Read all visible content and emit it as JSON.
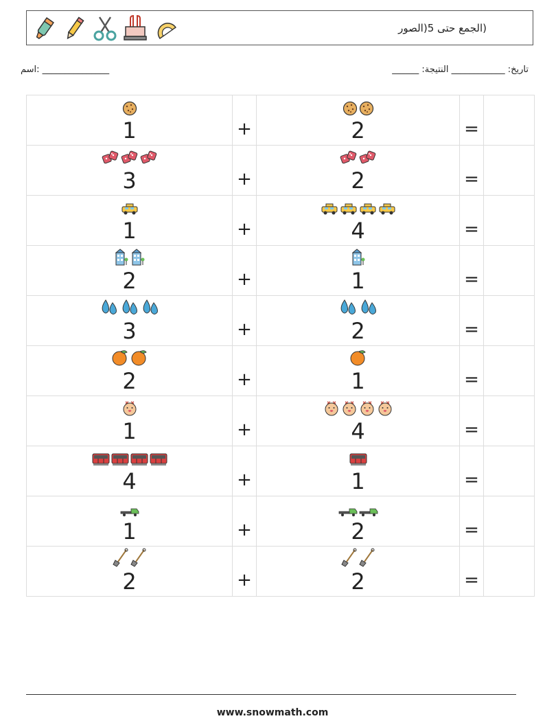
{
  "header": {
    "title": "(الجمع حتى 5(الصور",
    "icons": [
      "highlighter-icon",
      "pencil-icon",
      "scissors-icon",
      "binder-clip-icon",
      "protractor-icon"
    ]
  },
  "meta": {
    "name_label": "اسم: _______________",
    "right_label": "______ :تاريخ: ____________ النتيجة"
  },
  "rows": [
    {
      "a": "1",
      "a_icon": "cookie",
      "b": "2",
      "b_icon": "cookie"
    },
    {
      "a": "3",
      "a_icon": "dice",
      "b": "2",
      "b_icon": "dice"
    },
    {
      "a": "1",
      "a_icon": "taxi",
      "b": "4",
      "b_icon": "taxi"
    },
    {
      "a": "2",
      "a_icon": "building",
      "b": "1",
      "b_icon": "building"
    },
    {
      "a": "3",
      "a_icon": "water-drops",
      "b": "2",
      "b_icon": "water-drops"
    },
    {
      "a": "2",
      "a_icon": "orange",
      "b": "1",
      "b_icon": "orange"
    },
    {
      "a": "1",
      "a_icon": "face",
      "b": "4",
      "b_icon": "face"
    },
    {
      "a": "4",
      "a_icon": "bus",
      "b": "1",
      "b_icon": "bus"
    },
    {
      "a": "1",
      "a_icon": "truck",
      "b": "2",
      "b_icon": "truck"
    },
    {
      "a": "2",
      "a_icon": "shovel",
      "b": "2",
      "b_icon": "shovel"
    }
  ],
  "plus": "+",
  "equals": "=",
  "footer": "www.snowmath.com"
}
